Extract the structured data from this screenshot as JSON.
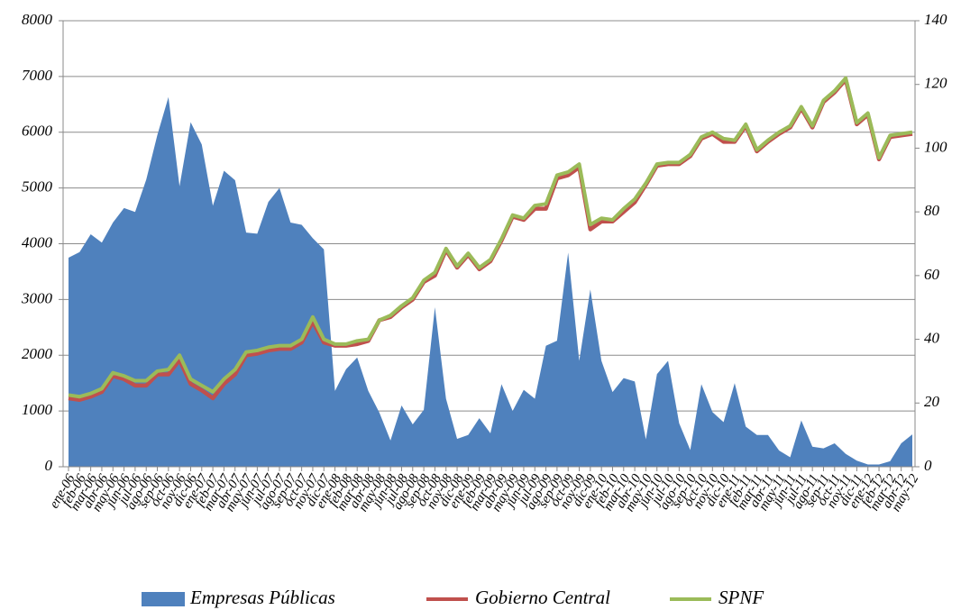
{
  "chart_data": {
    "type": "area-line",
    "categories": [
      "ene-06",
      "feb-06",
      "mar-06",
      "abr-06",
      "may-06",
      "jun-06",
      "jul-06",
      "ago-06",
      "sep-06",
      "oct-06",
      "nov-06",
      "dic-06",
      "ene-07",
      "feb-07",
      "mar-07",
      "abr-07",
      "may-07",
      "jun-07",
      "jul-07",
      "ago-07",
      "sep-07",
      "oct-07",
      "nov-07",
      "dic-07",
      "ene-08",
      "feb-08",
      "mar-08",
      "abr-08",
      "may-08",
      "jun-08",
      "jul-08",
      "ago-08",
      "sep-08",
      "oct-08",
      "nov-08",
      "dic-08",
      "ene-09",
      "feb-09",
      "mar-09",
      "abr-09",
      "may-09",
      "jun-09",
      "jul-09",
      "ago-09",
      "sep-09",
      "oct-09",
      "nov-09",
      "dic-09",
      "ene-10",
      "feb-10",
      "mar-10",
      "abr-10",
      "may-10",
      "jun-10",
      "jul-10",
      "ago-10",
      "sep-10",
      "oct-10",
      "nov-10",
      "dic-10",
      "ene-11",
      "feb-11",
      "mar-11",
      "abr-11",
      "may-11",
      "jun-11",
      "jul-11",
      "ago-11",
      "sep-11",
      "oct-11",
      "nov-11",
      "dic-11",
      "ene-12",
      "feb-12",
      "mar-12",
      "abr-12",
      "may-12"
    ],
    "series": [
      {
        "name": "Empresas Públicas",
        "color": "#4f81bd",
        "kind": "area",
        "values": [
          3750,
          3850,
          4170,
          4020,
          4380,
          4640,
          4570,
          5150,
          5950,
          6630,
          5030,
          6180,
          5780,
          4680,
          5310,
          5140,
          4200,
          4180,
          4750,
          5000,
          4380,
          4340,
          4100,
          3900,
          1360,
          1750,
          1960,
          1360,
          970,
          470,
          1100,
          760,
          1020,
          2860,
          1220,
          500,
          570,
          870,
          600,
          1480,
          1000,
          1380,
          1220,
          2170,
          2260,
          3840,
          1900,
          3180,
          1900,
          1340,
          1590,
          1530,
          490,
          1660,
          1900,
          780,
          300,
          1480,
          980,
          800,
          1500,
          720,
          570,
          570,
          290,
          170,
          830,
          360,
          330,
          420,
          230,
          110,
          40,
          40,
          100,
          420,
          580
        ]
      },
      {
        "name": "Gobierno Central",
        "color": "#c0504d",
        "kind": "line",
        "axis": "y2",
        "values": [
          21.5,
          21,
          22,
          23.5,
          28.5,
          27.5,
          25.5,
          25.5,
          29,
          29,
          33.5,
          26,
          24,
          21.5,
          26,
          29,
          35,
          35.5,
          36.5,
          37,
          37,
          39,
          45.5,
          39,
          38,
          38,
          38.5,
          39.5,
          46,
          47,
          50,
          52.5,
          58,
          60,
          68,
          62.5,
          66.5,
          62,
          64.5,
          71,
          78.5,
          77.5,
          81,
          81,
          90.5,
          91.5,
          94,
          74.5,
          77,
          77,
          80,
          83,
          88.5,
          94.5,
          95,
          95,
          97.5,
          103,
          104.5,
          102,
          102,
          107,
          99,
          102,
          104.5,
          106.5,
          112.5,
          106.5,
          114.5,
          117.5,
          121.5,
          107.5,
          110.5,
          96.5,
          103.5,
          104,
          104.5
        ]
      },
      {
        "name": "SPNF",
        "color": "#9bbb59",
        "kind": "line",
        "axis": "y2",
        "values": [
          22.5,
          22,
          23,
          24.5,
          29.5,
          28.5,
          27,
          27,
          30,
          30.5,
          35,
          27.5,
          25.5,
          23.5,
          27.5,
          30.5,
          36,
          36.5,
          37.5,
          38,
          38,
          40,
          47,
          40,
          38.5,
          38.5,
          39.5,
          40,
          46,
          47.5,
          50.5,
          53,
          58.5,
          61,
          68.5,
          63,
          67,
          62.5,
          65,
          71.5,
          79,
          78,
          82,
          82.5,
          91.5,
          92.5,
          95,
          76,
          78,
          77.5,
          81,
          84,
          89,
          95,
          95.5,
          95.5,
          98,
          103.5,
          105,
          103,
          102.5,
          107.5,
          99.5,
          102.5,
          105,
          107,
          113,
          107,
          115,
          118,
          122,
          108,
          111,
          97,
          104,
          104.5,
          105
        ]
      }
    ],
    "ylim": [
      0,
      8000
    ],
    "yticks": [
      0,
      1000,
      2000,
      3000,
      4000,
      5000,
      6000,
      7000,
      8000
    ],
    "y2lim": [
      0,
      140
    ],
    "y2ticks": [
      0,
      20,
      40,
      60,
      80,
      100,
      120,
      140
    ],
    "grid": true,
    "legend": "bottom"
  }
}
